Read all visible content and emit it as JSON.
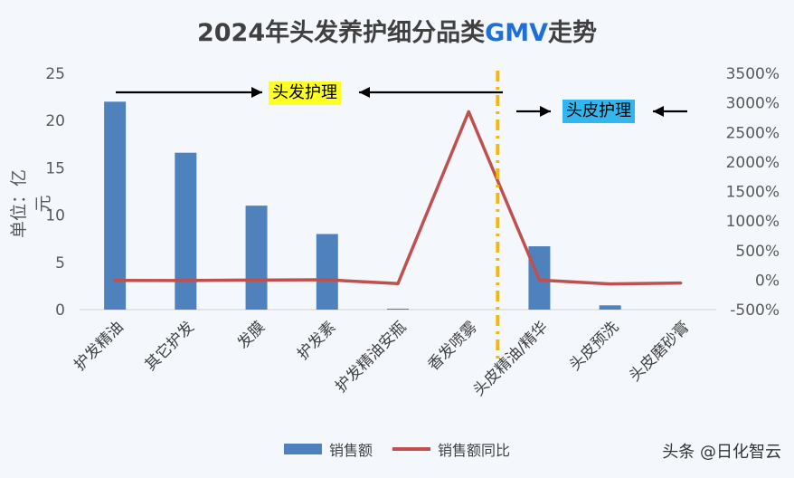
{
  "title_part1": "2024年头发养护细分品类",
  "title_part2": "GMV",
  "title_part3": "走势",
  "watermark": "头条 @日化智云",
  "annotations": {
    "hair_care": "头发护理",
    "scalp_care": "头皮护理"
  },
  "colors": {
    "bar": "#4f81bd",
    "line": "#c0504d",
    "divider": "#f2b600",
    "title_highlight": "#1f6fd6",
    "hair_tag_bg": "#ffff24",
    "scalp_tag_bg": "#33b5ee"
  },
  "chart_data": {
    "type": "bar",
    "categories": [
      "护发精油",
      "其它护发",
      "发膜",
      "护发素",
      "护发精油安瓶",
      "香发喷雾",
      "头皮精油/精华",
      "头皮预洗",
      "头皮磨砂膏"
    ],
    "series": [
      {
        "name": "销售额",
        "type": "bar",
        "axis": "left",
        "values": [
          22,
          16.6,
          11,
          8,
          0.1,
          0,
          6.7,
          0.45,
          0
        ]
      },
      {
        "name": "销售额同比",
        "type": "line",
        "axis": "right",
        "values": [
          -5,
          -7,
          0,
          5,
          -60,
          2850,
          0,
          -65,
          -50
        ]
      }
    ],
    "ylabel": "单位：亿元",
    "ylim": [
      0,
      25
    ],
    "yticks": [
      "0",
      "5",
      "10",
      "15",
      "20",
      "25"
    ],
    "y2lim": [
      -500,
      3500
    ],
    "y2ticks": [
      "-500%",
      "0%",
      "500%",
      "1000%",
      "1500%",
      "2000%",
      "2500%",
      "3000%",
      "3500%"
    ],
    "grid": false,
    "legend": "bottom"
  }
}
